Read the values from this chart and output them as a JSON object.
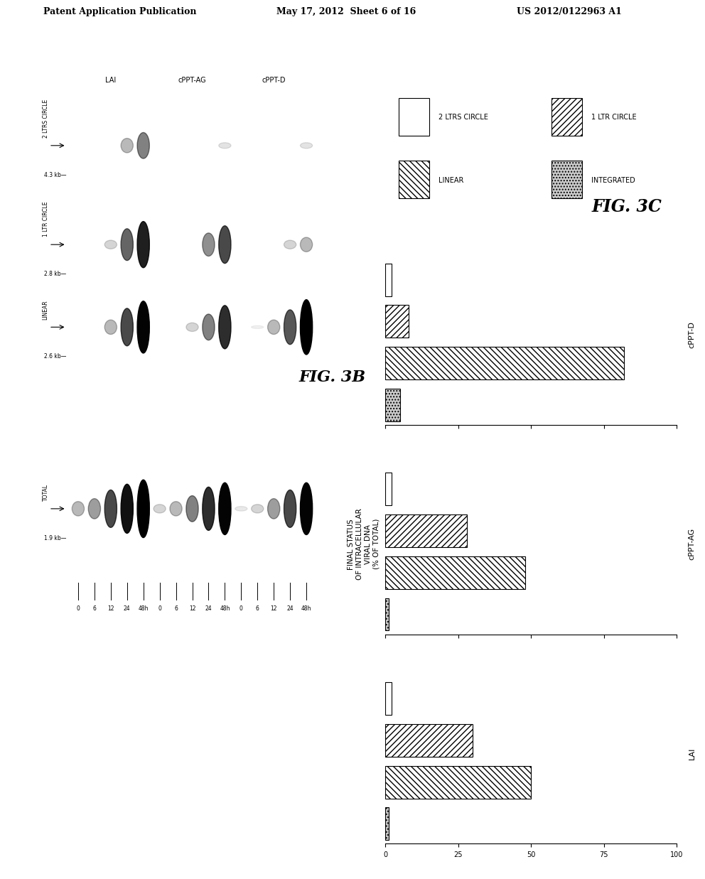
{
  "header_left": "Patent Application Publication",
  "header_mid": "May 17, 2012  Sheet 6 of 16",
  "header_right": "US 2012/0122963 A1",
  "fig3b_label": "FIG. 3B",
  "fig3c_label": "FIG. 3C",
  "legend_items": [
    "2 LTRS CIRCLE",
    "1 LTR CIRCLE",
    "LINEAR",
    "INTEGRATED"
  ],
  "bar_groups": [
    "cPPT-D",
    "cPPT-AG",
    "LAI"
  ],
  "bar_data": {
    "LAI": {
      "2_ltrs_circle": 2,
      "1_ltr_circle": 30,
      "linear": 50,
      "integrated": 1
    },
    "cPPT-AG": {
      "2_ltrs_circle": 2,
      "1_ltr_circle": 28,
      "linear": 48,
      "integrated": 1
    },
    "cPPT-D": {
      "2_ltrs_circle": 2,
      "1_ltr_circle": 8,
      "linear": 82,
      "integrated": 5
    }
  },
  "xlim": [
    0,
    100
  ],
  "xticks": [
    0,
    25,
    50,
    75,
    100
  ],
  "ylabel_text": "FINAL STATUS\nOF INTRACELLULAR\nVIRAL DNA\n(% OF TOTAL)",
  "gel_size_labels": [
    "4.3 kb",
    "2.8 kb",
    "2.6 kb",
    "1.9 kb"
  ],
  "gel_time_labels": [
    "0",
    "6",
    "12",
    "24",
    "48h"
  ],
  "gel_sample_labels": [
    "LAI",
    "cPPT-AG",
    "cPPT-D"
  ],
  "band_names": [
    "2 LTRS CIRCLE",
    "1 LTR CIRCLE",
    "LINEAR",
    "TOTAL"
  ],
  "background_color": "#ffffff",
  "hatch_2ltrs": "",
  "hatch_1ltr": "////",
  "hatch_linear": "\\\\\\\\",
  "hatch_integrated": "....",
  "bar_facecolors": [
    "#ffffff",
    "#ffffff",
    "#ffffff",
    "#cccccc"
  ]
}
